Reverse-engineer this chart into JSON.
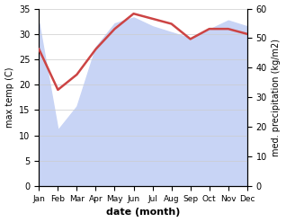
{
  "months": [
    "Jan",
    "Feb",
    "Mar",
    "Apr",
    "May",
    "Jun",
    "Jul",
    "Aug",
    "Sep",
    "Oct",
    "Nov",
    "Dec"
  ],
  "x": [
    1,
    2,
    3,
    4,
    5,
    6,
    7,
    8,
    9,
    10,
    11,
    12
  ],
  "temp_max": [
    27.0,
    19.0,
    22.0,
    27.0,
    31.0,
    34.0,
    33.0,
    32.0,
    29.0,
    31.0,
    31.0,
    30.0
  ],
  "precipitation": [
    55.0,
    19.0,
    27.0,
    47.0,
    55.0,
    57.0,
    54.0,
    52.0,
    50.0,
    53.0,
    56.0,
    54.0
  ],
  "temp_color": "#cc4444",
  "precip_fill_color": "#c8d4f5",
  "xlabel": "date (month)",
  "ylabel_left": "max temp (C)",
  "ylabel_right": "med. precipitation (kg/m2)",
  "ylim_left": [
    0,
    35
  ],
  "ylim_right": [
    0,
    60
  ],
  "yticks_left": [
    0,
    5,
    10,
    15,
    20,
    25,
    30,
    35
  ],
  "yticks_right": [
    0,
    10,
    20,
    30,
    40,
    50,
    60
  ]
}
